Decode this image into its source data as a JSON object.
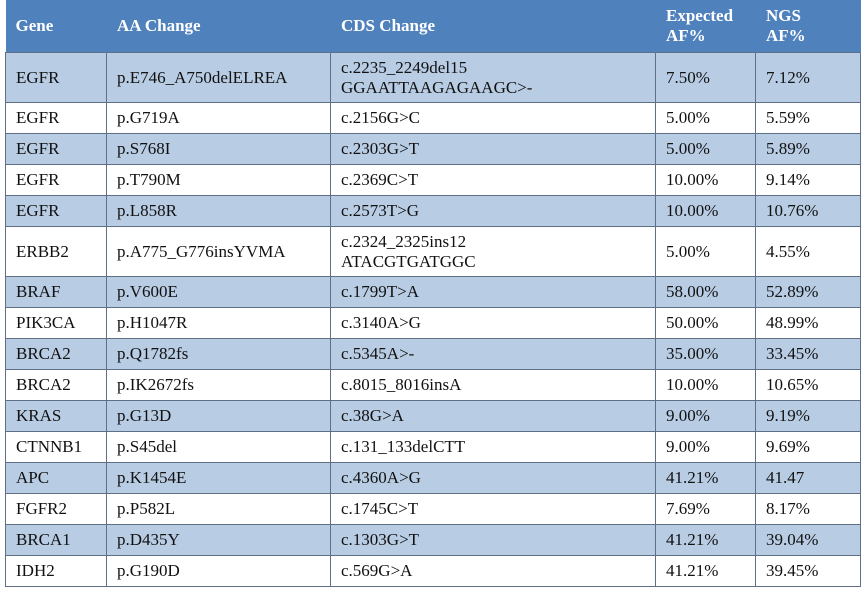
{
  "table": {
    "header": [
      "Gene",
      "AA Change",
      "CDS Change",
      "Expected\nAF%",
      "NGS\nAF%"
    ],
    "rows": [
      [
        "EGFR",
        "p.E746_A750delELREA",
        "c.2235_2249del15\nGGAATTAAGAGAAGC>-",
        "7.50%",
        "7.12%"
      ],
      [
        "EGFR",
        "p.G719A",
        "c.2156G>C",
        "5.00%",
        "5.59%"
      ],
      [
        "EGFR",
        "p.S768I",
        "c.2303G>T",
        "5.00%",
        "5.89%"
      ],
      [
        "EGFR",
        "p.T790M",
        "c.2369C>T",
        "10.00%",
        "9.14%"
      ],
      [
        "EGFR",
        "p.L858R",
        "c.2573T>G",
        "10.00%",
        "10.76%"
      ],
      [
        "ERBB2",
        "p.A775_G776insYVMA",
        "c.2324_2325ins12\nATACGTGATGGC",
        "5.00%",
        "4.55%"
      ],
      [
        "BRAF",
        "p.V600E",
        "c.1799T>A",
        "58.00%",
        "52.89%"
      ],
      [
        "PIK3CA",
        "p.H1047R",
        "c.3140A>G",
        "50.00%",
        "48.99%"
      ],
      [
        "BRCA2",
        "p.Q1782fs",
        "c.5345A>-",
        "35.00%",
        "33.45%"
      ],
      [
        "BRCA2",
        "p.IK2672fs",
        "c.8015_8016insA",
        "10.00%",
        "10.65%"
      ],
      [
        "KRAS",
        "p.G13D",
        "c.38G>A",
        "9.00%",
        "9.19%"
      ],
      [
        "CTNNB1",
        "p.S45del",
        "c.131_133delCTT",
        "9.00%",
        "9.69%"
      ],
      [
        "APC",
        "p.K1454E",
        "c.4360A>G",
        "41.21%",
        "41.47"
      ],
      [
        "FGFR2",
        "p.P582L",
        "c.1745C>T",
        "7.69%",
        "8.17%"
      ],
      [
        "BRCA1",
        "p.D435Y",
        "c.1303G>T",
        "41.21%",
        "39.04%"
      ],
      [
        "IDH2",
        "p.G190D",
        "c.569G>A",
        "41.21%",
        "39.45%"
      ]
    ]
  }
}
